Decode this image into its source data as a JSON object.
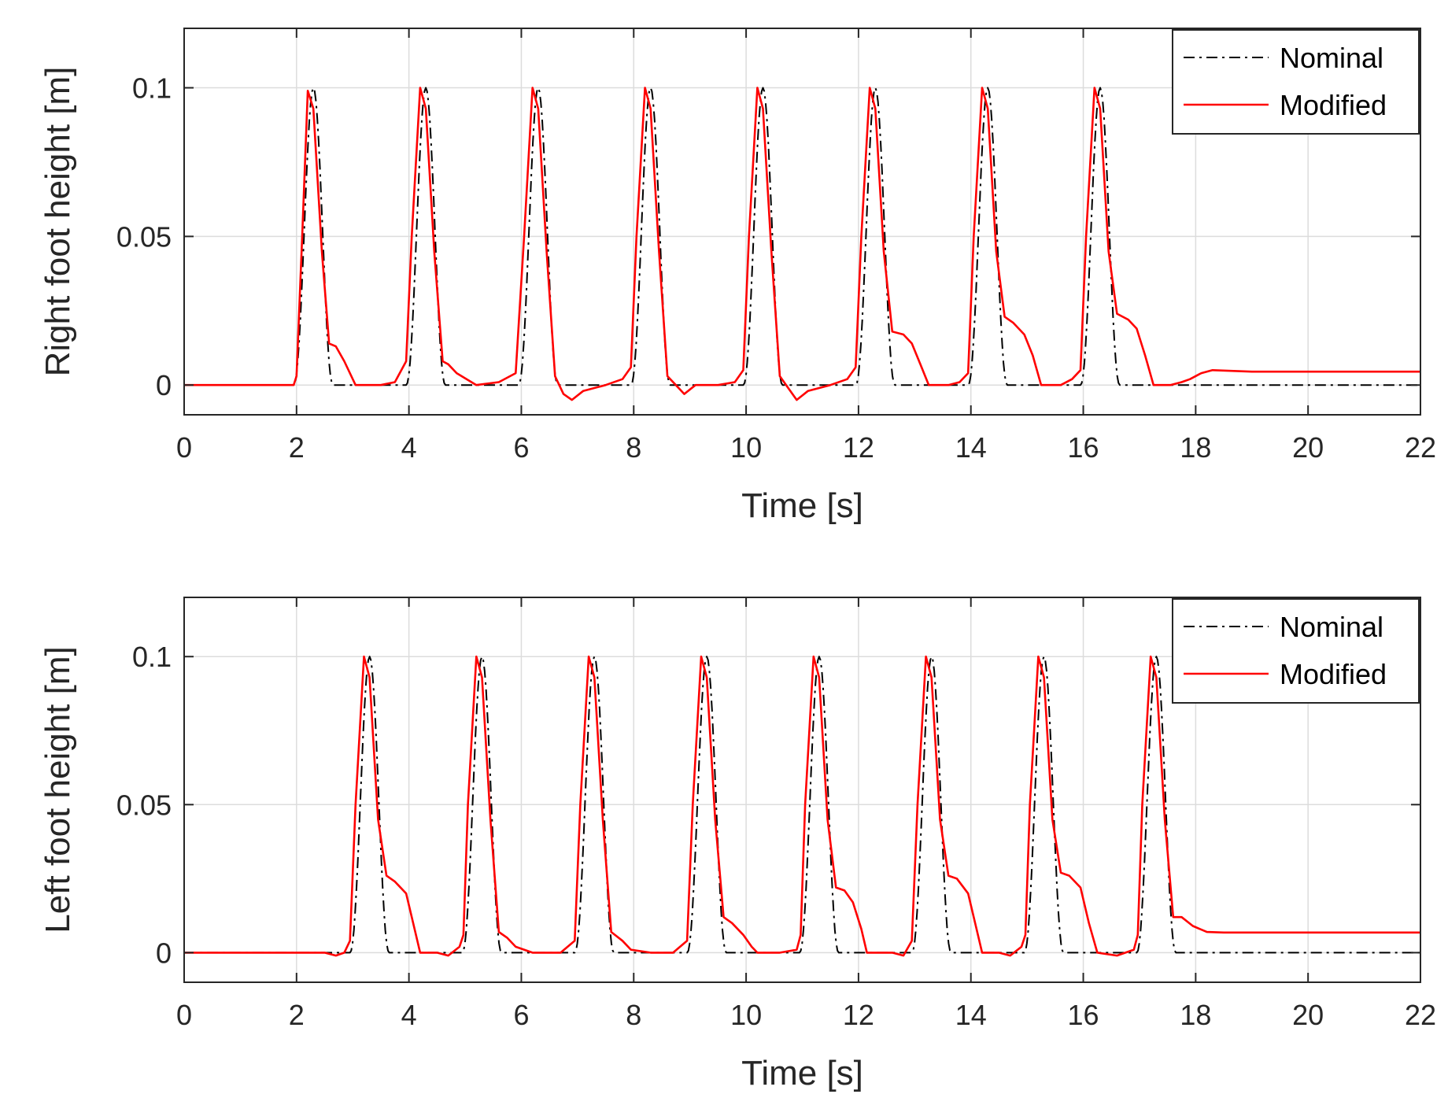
{
  "colors": {
    "nominal": "#000000",
    "modified": "#ff0000",
    "grid": "#dcdcdc",
    "axis": "#262626"
  },
  "chart_data": [
    {
      "type": "line",
      "id": "right",
      "title": "",
      "xlabel": "Time [s]",
      "ylabel": "Right foot height [m]",
      "xlim": [
        0,
        22
      ],
      "ylim": [
        -0.01,
        0.12
      ],
      "xticks": [
        0,
        2,
        4,
        6,
        8,
        10,
        12,
        14,
        16,
        18,
        20,
        22
      ],
      "xtick_labels": [
        "0",
        "2",
        "4",
        "6",
        "8",
        "10",
        "12",
        "14",
        "16",
        "18",
        "20",
        "22"
      ],
      "yticks": [
        0,
        0.05,
        0.1
      ],
      "ytick_labels": [
        "0",
        "0.05",
        "0.1"
      ],
      "grid": true,
      "legend": {
        "position": "top-right",
        "entries": [
          "Nominal",
          "Modified"
        ]
      },
      "series": [
        {
          "name": "Nominal",
          "style": "dash-dot",
          "peak_times": [
            2.2,
            4.2,
            6.2,
            8.2,
            10.2,
            12.2,
            14.2,
            16.2
          ],
          "peak_value": 0.1,
          "baseline": 0.0
        },
        {
          "name": "Modified",
          "style": "solid",
          "points": [
            [
              0,
              0
            ],
            [
              1.95,
              0
            ],
            [
              2.0,
              0.003
            ],
            [
              2.1,
              0.05
            ],
            [
              2.2,
              0.099
            ],
            [
              2.3,
              0.093
            ],
            [
              2.45,
              0.045
            ],
            [
              2.58,
              0.014
            ],
            [
              2.7,
              0.013
            ],
            [
              2.85,
              0.008
            ],
            [
              3.05,
              0.0
            ],
            [
              3.5,
              0.0
            ],
            [
              3.75,
              0.001
            ],
            [
              3.95,
              0.008
            ],
            [
              4.05,
              0.05
            ],
            [
              4.2,
              0.1
            ],
            [
              4.3,
              0.093
            ],
            [
              4.45,
              0.045
            ],
            [
              4.6,
              0.008
            ],
            [
              4.7,
              0.007
            ],
            [
              4.85,
              0.004
            ],
            [
              5.2,
              0.0
            ],
            [
              5.6,
              0.001
            ],
            [
              5.9,
              0.004
            ],
            [
              6.05,
              0.05
            ],
            [
              6.2,
              0.1
            ],
            [
              6.3,
              0.093
            ],
            [
              6.45,
              0.045
            ],
            [
              6.6,
              0.003
            ],
            [
              6.75,
              -0.003
            ],
            [
              6.9,
              -0.005
            ],
            [
              7.1,
              -0.002
            ],
            [
              7.5,
              0.0
            ],
            [
              7.8,
              0.002
            ],
            [
              7.95,
              0.006
            ],
            [
              8.05,
              0.05
            ],
            [
              8.2,
              0.1
            ],
            [
              8.3,
              0.093
            ],
            [
              8.45,
              0.045
            ],
            [
              8.6,
              0.003
            ],
            [
              8.75,
              0.0
            ],
            [
              8.9,
              -0.003
            ],
            [
              9.1,
              0.0
            ],
            [
              9.5,
              0.0
            ],
            [
              9.8,
              0.001
            ],
            [
              9.95,
              0.005
            ],
            [
              10.05,
              0.05
            ],
            [
              10.2,
              0.1
            ],
            [
              10.3,
              0.093
            ],
            [
              10.45,
              0.045
            ],
            [
              10.6,
              0.003
            ],
            [
              10.75,
              -0.001
            ],
            [
              10.9,
              -0.005
            ],
            [
              11.1,
              -0.002
            ],
            [
              11.5,
              0.0
            ],
            [
              11.8,
              0.002
            ],
            [
              11.95,
              0.006
            ],
            [
              12.05,
              0.05
            ],
            [
              12.2,
              0.1
            ],
            [
              12.3,
              0.093
            ],
            [
              12.45,
              0.045
            ],
            [
              12.6,
              0.018
            ],
            [
              12.8,
              0.017
            ],
            [
              12.95,
              0.014
            ],
            [
              13.1,
              0.007
            ],
            [
              13.25,
              0.0
            ],
            [
              13.6,
              0.0
            ],
            [
              13.8,
              0.001
            ],
            [
              13.95,
              0.004
            ],
            [
              14.05,
              0.05
            ],
            [
              14.2,
              0.1
            ],
            [
              14.3,
              0.093
            ],
            [
              14.45,
              0.045
            ],
            [
              14.6,
              0.023
            ],
            [
              14.75,
              0.021
            ],
            [
              14.95,
              0.017
            ],
            [
              15.1,
              0.01
            ],
            [
              15.25,
              0.0
            ],
            [
              15.6,
              0.0
            ],
            [
              15.8,
              0.002
            ],
            [
              15.95,
              0.005
            ],
            [
              16.05,
              0.05
            ],
            [
              16.2,
              0.1
            ],
            [
              16.3,
              0.093
            ],
            [
              16.45,
              0.045
            ],
            [
              16.6,
              0.024
            ],
            [
              16.8,
              0.022
            ],
            [
              16.95,
              0.019
            ],
            [
              17.1,
              0.01
            ],
            [
              17.25,
              0.0
            ],
            [
              17.55,
              0.0
            ],
            [
              17.75,
              0.001
            ],
            [
              17.9,
              0.002
            ],
            [
              18.1,
              0.004
            ],
            [
              18.3,
              0.005
            ],
            [
              19,
              0.0045
            ],
            [
              22,
              0.0045
            ]
          ]
        }
      ]
    },
    {
      "type": "line",
      "id": "left",
      "title": "",
      "xlabel": "Time [s]",
      "ylabel": "Left foot height [m]",
      "xlim": [
        0,
        22
      ],
      "ylim": [
        -0.01,
        0.12
      ],
      "xticks": [
        0,
        2,
        4,
        6,
        8,
        10,
        12,
        14,
        16,
        18,
        20,
        22
      ],
      "xtick_labels": [
        "0",
        "2",
        "4",
        "6",
        "8",
        "10",
        "12",
        "14",
        "16",
        "18",
        "20",
        "22"
      ],
      "yticks": [
        0,
        0.05,
        0.1
      ],
      "ytick_labels": [
        "0",
        "0.05",
        "0.1"
      ],
      "grid": true,
      "legend": {
        "position": "top-right",
        "entries": [
          "Nominal",
          "Modified"
        ]
      },
      "series": [
        {
          "name": "Nominal",
          "style": "dash-dot",
          "peak_times": [
            3.2,
            5.2,
            7.2,
            9.2,
            11.2,
            13.2,
            15.2,
            17.2
          ],
          "peak_value": 0.1,
          "baseline": 0.0
        },
        {
          "name": "Modified",
          "style": "solid",
          "points": [
            [
              0,
              0
            ],
            [
              2.0,
              0
            ],
            [
              2.5,
              0.0
            ],
            [
              2.7,
              -0.001
            ],
            [
              2.85,
              0.0
            ],
            [
              2.95,
              0.004
            ],
            [
              3.05,
              0.05
            ],
            [
              3.2,
              0.1
            ],
            [
              3.3,
              0.093
            ],
            [
              3.45,
              0.045
            ],
            [
              3.6,
              0.026
            ],
            [
              3.75,
              0.024
            ],
            [
              3.95,
              0.02
            ],
            [
              4.1,
              0.008
            ],
            [
              4.2,
              0.0
            ],
            [
              4.5,
              0.0
            ],
            [
              4.7,
              -0.001
            ],
            [
              4.9,
              0.002
            ],
            [
              4.97,
              0.006
            ],
            [
              5.05,
              0.05
            ],
            [
              5.2,
              0.1
            ],
            [
              5.3,
              0.093
            ],
            [
              5.45,
              0.045
            ],
            [
              5.6,
              0.007
            ],
            [
              5.75,
              0.005
            ],
            [
              5.9,
              0.002
            ],
            [
              6.2,
              0.0
            ],
            [
              6.7,
              0.0
            ],
            [
              6.95,
              0.004
            ],
            [
              7.05,
              0.05
            ],
            [
              7.2,
              0.1
            ],
            [
              7.3,
              0.093
            ],
            [
              7.45,
              0.045
            ],
            [
              7.6,
              0.007
            ],
            [
              7.8,
              0.004
            ],
            [
              7.95,
              0.001
            ],
            [
              8.3,
              0.0
            ],
            [
              8.7,
              0.0
            ],
            [
              8.95,
              0.004
            ],
            [
              9.05,
              0.05
            ],
            [
              9.2,
              0.1
            ],
            [
              9.3,
              0.093
            ],
            [
              9.45,
              0.045
            ],
            [
              9.6,
              0.012
            ],
            [
              9.75,
              0.01
            ],
            [
              9.95,
              0.006
            ],
            [
              10.1,
              0.002
            ],
            [
              10.2,
              0.0
            ],
            [
              10.6,
              0.0
            ],
            [
              10.9,
              0.001
            ],
            [
              10.97,
              0.006
            ],
            [
              11.05,
              0.05
            ],
            [
              11.2,
              0.1
            ],
            [
              11.3,
              0.093
            ],
            [
              11.45,
              0.045
            ],
            [
              11.6,
              0.022
            ],
            [
              11.75,
              0.021
            ],
            [
              11.9,
              0.017
            ],
            [
              12.05,
              0.008
            ],
            [
              12.15,
              0.0
            ],
            [
              12.6,
              0.0
            ],
            [
              12.8,
              -0.001
            ],
            [
              12.95,
              0.004
            ],
            [
              13.05,
              0.05
            ],
            [
              13.2,
              0.1
            ],
            [
              13.3,
              0.093
            ],
            [
              13.45,
              0.045
            ],
            [
              13.6,
              0.026
            ],
            [
              13.75,
              0.025
            ],
            [
              13.95,
              0.02
            ],
            [
              14.1,
              0.008
            ],
            [
              14.2,
              0.0
            ],
            [
              14.5,
              0.0
            ],
            [
              14.7,
              -0.001
            ],
            [
              14.9,
              0.002
            ],
            [
              14.97,
              0.006
            ],
            [
              15.05,
              0.05
            ],
            [
              15.2,
              0.1
            ],
            [
              15.3,
              0.093
            ],
            [
              15.45,
              0.045
            ],
            [
              15.6,
              0.027
            ],
            [
              15.75,
              0.026
            ],
            [
              15.95,
              0.022
            ],
            [
              16.1,
              0.01
            ],
            [
              16.25,
              0.0
            ],
            [
              16.6,
              -0.001
            ],
            [
              16.9,
              0.001
            ],
            [
              16.97,
              0.006
            ],
            [
              17.05,
              0.05
            ],
            [
              17.2,
              0.1
            ],
            [
              17.3,
              0.093
            ],
            [
              17.45,
              0.045
            ],
            [
              17.6,
              0.012
            ],
            [
              17.75,
              0.012
            ],
            [
              17.95,
              0.009
            ],
            [
              18.2,
              0.007
            ],
            [
              18.5,
              0.0068
            ],
            [
              22,
              0.0068
            ]
          ]
        }
      ]
    }
  ]
}
